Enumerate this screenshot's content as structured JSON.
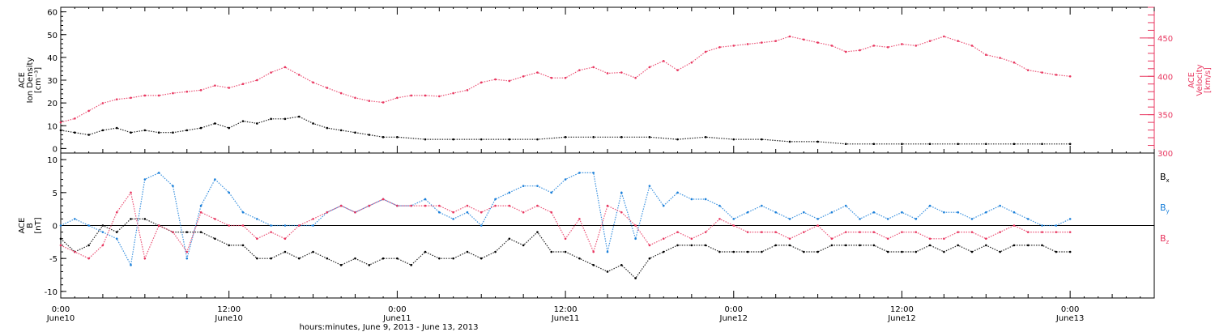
{
  "colors": {
    "black": "#000000",
    "blue": "#1a7fd9",
    "pink": "#e8365f"
  },
  "footer": "hours:minutes, June  9, 2013 - June 13, 2013",
  "time_ticks": [
    {
      "h": 0,
      "t1": "0:00",
      "t2": "June10"
    },
    {
      "h": 12,
      "t1": "12:00",
      "t2": "June10"
    },
    {
      "h": 24,
      "t1": "0:00",
      "t2": "June11"
    },
    {
      "h": 36,
      "t1": "12:00",
      "t2": "June11"
    },
    {
      "h": 48,
      "t1": "0:00",
      "t2": "June12"
    },
    {
      "h": 60,
      "t1": "12:00",
      "t2": "June12"
    },
    {
      "h": 72,
      "t1": "0:00",
      "t2": "June13"
    }
  ],
  "chart_data": [
    {
      "type": "scatter",
      "panel": "top",
      "ylabel_lines": [
        "ACE",
        "Ion Density",
        "[cm⁻³]"
      ],
      "ylim": [
        -2,
        62
      ],
      "yticks": [
        0,
        10,
        20,
        30,
        40,
        50,
        60
      ],
      "right_axis": {
        "label_lines": [
          "ACE",
          "Velocity",
          "[km/s]"
        ],
        "ylim": [
          300,
          490
        ],
        "yticks": [
          300,
          350,
          400,
          450
        ]
      },
      "xlim_hours": [
        0,
        78
      ],
      "series": [
        {
          "name": "",
          "color": "#000000",
          "axis": "left",
          "x": [
            0,
            1,
            2,
            3,
            4,
            5,
            6,
            7,
            8,
            9,
            10,
            11,
            12,
            13,
            14,
            15,
            16,
            17,
            18,
            19,
            20,
            21,
            22,
            23,
            24,
            26,
            28,
            30,
            32,
            34,
            36,
            38,
            40,
            42,
            44,
            46,
            48,
            50,
            52,
            54,
            56,
            58,
            60,
            62,
            64,
            66,
            68,
            70,
            72
          ],
          "y": [
            8,
            7,
            6,
            8,
            9,
            7,
            8,
            7,
            7,
            8,
            9,
            11,
            9,
            12,
            11,
            13,
            13,
            14,
            11,
            9,
            8,
            7,
            6,
            5,
            5,
            4,
            4,
            4,
            4,
            4,
            5,
            5,
            5,
            5,
            4,
            5,
            4,
            4,
            3,
            3,
            2,
            2,
            2,
            2,
            2,
            2,
            2,
            2,
            2
          ]
        },
        {
          "name": "",
          "color": "#e8365f",
          "axis": "right",
          "x": [
            0,
            1,
            2,
            3,
            4,
            5,
            6,
            7,
            8,
            9,
            10,
            11,
            12,
            13,
            14,
            15,
            16,
            17,
            18,
            19,
            20,
            21,
            22,
            23,
            24,
            25,
            26,
            27,
            28,
            29,
            30,
            31,
            32,
            33,
            34,
            35,
            36,
            37,
            38,
            39,
            40,
            41,
            42,
            43,
            44,
            45,
            46,
            47,
            48,
            49,
            50,
            51,
            52,
            53,
            54,
            55,
            56,
            57,
            58,
            59,
            60,
            61,
            62,
            63,
            64,
            65,
            66,
            67,
            68,
            69,
            70,
            71,
            72
          ],
          "y": [
            340,
            345,
            355,
            365,
            370,
            372,
            375,
            375,
            378,
            380,
            382,
            388,
            385,
            390,
            395,
            405,
            412,
            402,
            392,
            385,
            378,
            372,
            368,
            366,
            372,
            375,
            375,
            374,
            378,
            382,
            392,
            396,
            394,
            400,
            405,
            398,
            398,
            408,
            412,
            404,
            405,
            398,
            412,
            420,
            408,
            418,
            432,
            438,
            440,
            442,
            444,
            446,
            452,
            448,
            444,
            440,
            432,
            434,
            440,
            438,
            442,
            440,
            446,
            452,
            446,
            440,
            428,
            424,
            418,
            408,
            405,
            402,
            400
          ]
        }
      ]
    },
    {
      "type": "scatter",
      "panel": "bottom",
      "ylabel_lines": [
        "ACE",
        "B",
        "[nT]"
      ],
      "ylim": [
        -11,
        11
      ],
      "yticks": [
        -10,
        -5,
        0,
        5,
        10
      ],
      "xlim_hours": [
        0,
        78
      ],
      "series": [
        {
          "name": "Bx",
          "color": "#000000",
          "x": [
            0,
            1,
            2,
            3,
            4,
            5,
            6,
            7,
            8,
            9,
            10,
            11,
            12,
            13,
            14,
            15,
            16,
            17,
            18,
            19,
            20,
            21,
            22,
            23,
            24,
            25,
            26,
            27,
            28,
            29,
            30,
            31,
            32,
            33,
            34,
            35,
            36,
            37,
            38,
            39,
            40,
            41,
            42,
            43,
            44,
            45,
            46,
            47,
            48,
            49,
            50,
            51,
            52,
            53,
            54,
            55,
            56,
            57,
            58,
            59,
            60,
            61,
            62,
            63,
            64,
            65,
            66,
            67,
            68,
            69,
            70,
            71,
            72
          ],
          "y": [
            -2,
            -4,
            -3,
            0,
            -1,
            1,
            1,
            0,
            -1,
            -1,
            -1,
            -2,
            -3,
            -3,
            -5,
            -5,
            -4,
            -5,
            -4,
            -5,
            -6,
            -5,
            -6,
            -5,
            -5,
            -6,
            -4,
            -5,
            -5,
            -4,
            -5,
            -4,
            -2,
            -3,
            -1,
            -4,
            -4,
            -5,
            -6,
            -7,
            -6,
            -8,
            -5,
            -4,
            -3,
            -3,
            -3,
            -4,
            -4,
            -4,
            -4,
            -3,
            -3,
            -4,
            -4,
            -3,
            -3,
            -3,
            -3,
            -4,
            -4,
            -4,
            -3,
            -4,
            -3,
            -4,
            -3,
            -4,
            -3,
            -3,
            -3,
            -4,
            -4
          ]
        },
        {
          "name": "By",
          "color": "#1a7fd9",
          "x": [
            0,
            1,
            2,
            3,
            4,
            5,
            6,
            7,
            8,
            9,
            10,
            11,
            12,
            13,
            14,
            15,
            16,
            17,
            18,
            19,
            20,
            21,
            22,
            23,
            24,
            25,
            26,
            27,
            28,
            29,
            30,
            31,
            32,
            33,
            34,
            35,
            36,
            37,
            38,
            39,
            40,
            41,
            42,
            43,
            44,
            45,
            46,
            47,
            48,
            49,
            50,
            51,
            52,
            53,
            54,
            55,
            56,
            57,
            58,
            59,
            60,
            61,
            62,
            63,
            64,
            65,
            66,
            67,
            68,
            69,
            70,
            71,
            72
          ],
          "y": [
            0,
            1,
            0,
            -1,
            -2,
            -6,
            7,
            8,
            6,
            -5,
            3,
            7,
            5,
            2,
            1,
            0,
            0,
            0,
            0,
            2,
            3,
            2,
            3,
            4,
            3,
            3,
            4,
            2,
            1,
            2,
            0,
            4,
            5,
            6,
            6,
            5,
            7,
            8,
            8,
            -4,
            5,
            -2,
            6,
            3,
            5,
            4,
            4,
            3,
            1,
            2,
            3,
            2,
            1,
            2,
            1,
            2,
            3,
            1,
            2,
            1,
            2,
            1,
            3,
            2,
            2,
            1,
            2,
            3,
            2,
            1,
            0,
            0,
            1
          ]
        },
        {
          "name": "Bz",
          "color": "#e8365f",
          "x": [
            0,
            1,
            2,
            3,
            4,
            5,
            6,
            7,
            8,
            9,
            10,
            11,
            12,
            13,
            14,
            15,
            16,
            17,
            18,
            19,
            20,
            21,
            22,
            23,
            24,
            25,
            26,
            27,
            28,
            29,
            30,
            31,
            32,
            33,
            34,
            35,
            36,
            37,
            38,
            39,
            40,
            41,
            42,
            43,
            44,
            45,
            46,
            47,
            48,
            49,
            50,
            51,
            52,
            53,
            54,
            55,
            56,
            57,
            58,
            59,
            60,
            61,
            62,
            63,
            64,
            65,
            66,
            67,
            68,
            69,
            70,
            71,
            72
          ],
          "y": [
            -3,
            -4,
            -5,
            -3,
            2,
            5,
            -5,
            0,
            -1,
            -4,
            2,
            1,
            0,
            0,
            -2,
            -1,
            -2,
            0,
            1,
            2,
            3,
            2,
            3,
            4,
            3,
            3,
            3,
            3,
            2,
            3,
            2,
            3,
            3,
            2,
            3,
            2,
            -2,
            1,
            -4,
            3,
            2,
            0,
            -3,
            -2,
            -1,
            -2,
            -1,
            1,
            0,
            -1,
            -1,
            -1,
            -2,
            -1,
            0,
            -2,
            -1,
            -1,
            -1,
            -2,
            -1,
            -1,
            -2,
            -2,
            -1,
            -1,
            -2,
            -1,
            0,
            -1,
            -1,
            -1,
            -1
          ]
        }
      ]
    }
  ]
}
